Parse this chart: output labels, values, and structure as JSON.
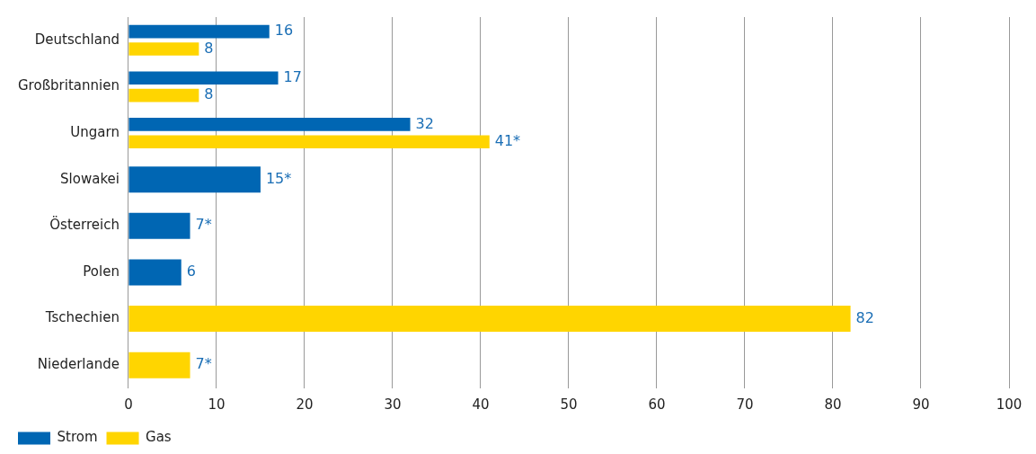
{
  "chart_data": {
    "type": "bar",
    "orientation": "horizontal",
    "categories": [
      "Deutschland",
      "Großbritannien",
      "Ungarn",
      "Slowakei",
      "Österreich",
      "Polen",
      "Tschechien",
      "Niederlande"
    ],
    "series": [
      {
        "name": "Strom",
        "color": "#0066b3",
        "values": [
          16,
          17,
          32,
          15,
          7,
          6,
          null,
          null
        ],
        "value_labels": [
          "16",
          "17",
          "32",
          "15*",
          "7*",
          "6",
          null,
          null
        ]
      },
      {
        "name": "Gas",
        "color": "#ffd500",
        "values": [
          8,
          8,
          41,
          null,
          null,
          null,
          82,
          7
        ],
        "value_labels": [
          "8",
          "8",
          "41*",
          null,
          null,
          null,
          "82",
          "7*"
        ]
      }
    ],
    "xlim": [
      0,
      100
    ],
    "xticks": [
      0,
      10,
      20,
      30,
      40,
      50,
      60,
      70,
      80,
      90,
      100
    ],
    "grid": "x",
    "legend": "bottom left"
  }
}
